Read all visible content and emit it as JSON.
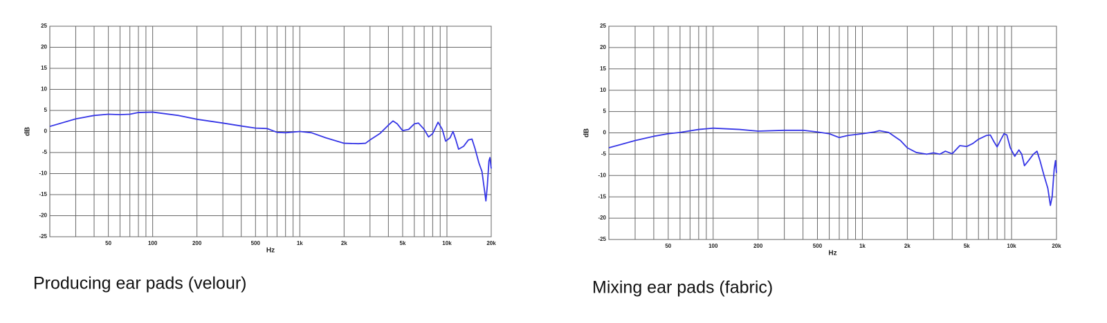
{
  "chart_data": [
    {
      "type": "line",
      "title": "Producing ear pads (velour)",
      "xlabel": "Hz",
      "ylabel": "dB",
      "xscale": "log",
      "grid": true,
      "color": "#3535e6",
      "xlim": [
        20,
        20000
      ],
      "ylim": [
        -25,
        25
      ],
      "yticks": [
        25,
        20,
        15,
        10,
        5,
        0,
        -5,
        -10,
        -15,
        -20,
        -25
      ],
      "xticks": [
        50,
        100,
        200,
        500,
        {
          "value": 1000,
          "label": "1k"
        },
        {
          "value": 2000,
          "label": "2k"
        },
        {
          "value": 5000,
          "label": "5k"
        },
        {
          "value": 10000,
          "label": "10k"
        },
        {
          "value": 20000,
          "label": "20k"
        }
      ],
      "xminor": [
        30,
        40,
        60,
        70,
        80,
        90,
        300,
        400,
        600,
        700,
        800,
        900,
        3000,
        4000,
        6000,
        7000,
        8000,
        9000
      ],
      "x": [
        20,
        30,
        40,
        50,
        60,
        70,
        80,
        100,
        150,
        200,
        300,
        400,
        500,
        600,
        700,
        800,
        1000,
        1200,
        1500,
        2000,
        2500,
        2800,
        3000,
        3500,
        4000,
        4300,
        4600,
        5000,
        5500,
        6000,
        6400,
        7000,
        7500,
        8000,
        8700,
        9300,
        9800,
        10500,
        11000,
        11500,
        12000,
        13000,
        14000,
        14800,
        15500,
        16500,
        17300,
        18000,
        18400,
        18800,
        19300,
        19600,
        20000
      ],
      "values": [
        1.2,
        3,
        3.8,
        4.1,
        4.0,
        4.1,
        4.5,
        4.6,
        3.8,
        2.9,
        2.0,
        1.3,
        0.8,
        0.7,
        -0.2,
        -0.3,
        0,
        -0.3,
        -1.5,
        -2.8,
        -2.9,
        -2.8,
        -2.0,
        -0.5,
        1.5,
        2.5,
        1.8,
        0.2,
        0.5,
        1.8,
        2.0,
        0.5,
        -1.3,
        -0.5,
        2.2,
        0.5,
        -2.3,
        -1.5,
        0,
        -2,
        -4.2,
        -3.5,
        -2,
        -1.8,
        -4,
        -7.5,
        -9.5,
        -14,
        -16.5,
        -13,
        -7,
        -6.2,
        -8.8
      ]
    },
    {
      "type": "line",
      "title": "Mixing ear pads (fabric)",
      "xlabel": "Hz",
      "ylabel": "dB",
      "xscale": "log",
      "grid": true,
      "color": "#3535e6",
      "xlim": [
        20,
        20000
      ],
      "ylim": [
        -25,
        25
      ],
      "yticks": [
        25,
        20,
        15,
        10,
        5,
        0,
        -5,
        -10,
        -15,
        -20,
        -25
      ],
      "xticks": [
        50,
        100,
        200,
        500,
        {
          "value": 1000,
          "label": "1k"
        },
        {
          "value": 2000,
          "label": "2k"
        },
        {
          "value": 5000,
          "label": "5k"
        },
        {
          "value": 10000,
          "label": "10k"
        },
        {
          "value": 20000,
          "label": "20k"
        }
      ],
      "xminor": [
        30,
        40,
        60,
        70,
        80,
        90,
        300,
        400,
        600,
        700,
        800,
        900,
        3000,
        4000,
        6000,
        7000,
        8000,
        9000
      ],
      "x": [
        20,
        30,
        40,
        50,
        60,
        80,
        100,
        150,
        200,
        300,
        400,
        500,
        600,
        700,
        800,
        1000,
        1200,
        1300,
        1500,
        1800,
        2000,
        2300,
        2700,
        3000,
        3300,
        3600,
        4000,
        4500,
        5000,
        5500,
        6000,
        6800,
        7200,
        7600,
        8000,
        8500,
        8900,
        9300,
        9800,
        10500,
        11200,
        11700,
        12200,
        13000,
        14000,
        14800,
        15500,
        16500,
        17500,
        18200,
        18700,
        19300,
        19700,
        20000
      ],
      "values": [
        -3.5,
        -1.8,
        -0.8,
        -0.2,
        0.1,
        0.8,
        1.1,
        0.8,
        0.4,
        0.6,
        0.6,
        0.2,
        -0.2,
        -1.1,
        -0.6,
        -0.2,
        0.2,
        0.5,
        0.1,
        -1.8,
        -3.5,
        -4.6,
        -5.0,
        -4.7,
        -5.0,
        -4.3,
        -4.9,
        -3.0,
        -3.2,
        -2.5,
        -1.5,
        -0.6,
        -0.5,
        -2.0,
        -3.3,
        -1.5,
        -0.2,
        -0.5,
        -3.5,
        -5.5,
        -4.0,
        -5.0,
        -7.7,
        -6.5,
        -5.0,
        -4.3,
        -6.5,
        -10,
        -13,
        -17,
        -15,
        -8.5,
        -6.5,
        -9.4
      ]
    }
  ]
}
